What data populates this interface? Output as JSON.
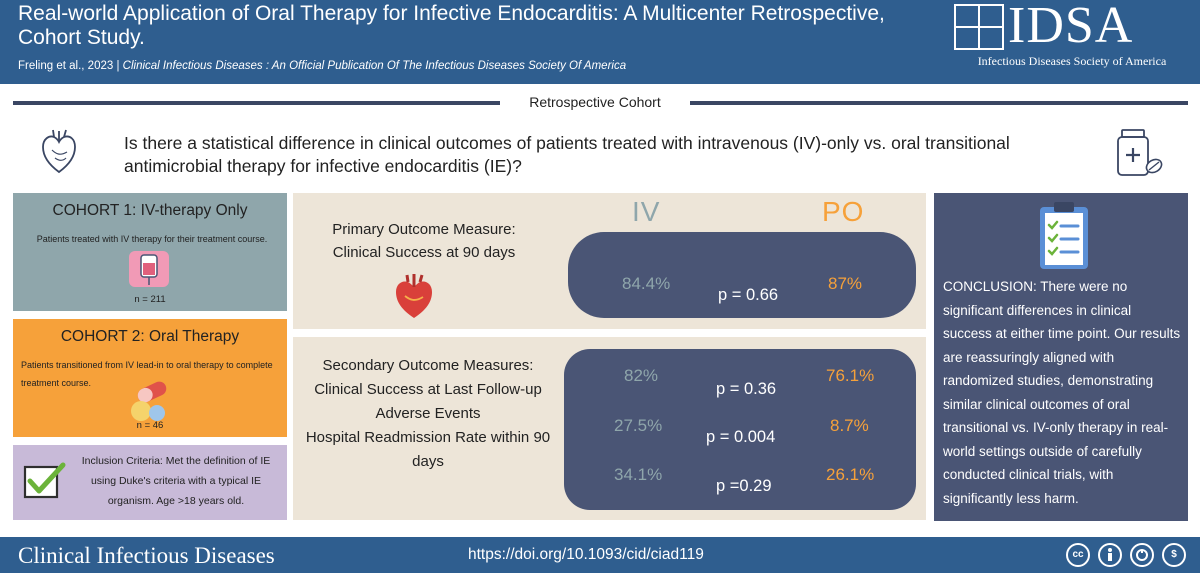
{
  "header": {
    "title": "Real-world Application of Oral Therapy for Infective Endocarditis: A Multicenter Retrospective, Cohort Study.",
    "authors": "Freling et al., 2023",
    "separator": "|",
    "journal": "Clinical Infectious Diseases : An Official Publication Of The Infectious Diseases Society Of America",
    "logo_text": "IDSA",
    "logo_subtitle": "Infectious Diseases Society of America"
  },
  "study_type": "Retrospective Cohort",
  "question": "Is there a statistical difference in clinical outcomes of patients treated with intravenous (IV)-only vs. oral transitional antimicrobial therapy for infective endocarditis (IE)?",
  "cohorts": [
    {
      "title": "COHORT 1: IV-therapy Only",
      "description": "Patients treated with IV therapy for their treatment course.",
      "n": "n = 211"
    },
    {
      "title": "COHORT 2: Oral Therapy",
      "description": "Patients transitioned from IV lead-in to oral therapy to complete treatment course.",
      "n": "n = 46"
    }
  ],
  "inclusion": "Inclusion Criteria:  Met the definition of IE using Duke's criteria with a typical IE organism. Age >18 years old.",
  "columns": {
    "iv": "IV",
    "po": "PO"
  },
  "primary": {
    "label_line1": "Primary Outcome Measure:",
    "label_line2": "Clinical Success at 90 days",
    "iv": "84.4%",
    "p": "p = 0.66",
    "po": "87%"
  },
  "secondary": {
    "heading": "Secondary Outcome Measures:",
    "rows": [
      {
        "label": "Clinical Success at Last Follow-up",
        "iv": "82%",
        "p": "p = 0.36",
        "po": "76.1%"
      },
      {
        "label": "Adverse Events",
        "iv": "27.5%",
        "p": "p = 0.004",
        "po": "8.7%"
      },
      {
        "label": "Hospital Readmission Rate within 90 days",
        "iv": "34.1%",
        "p": "p =0.29",
        "po": "26.1%"
      }
    ]
  },
  "conclusion": "CONCLUSION:  There were no significant differences in clinical success at either time point. Our results are reassuringly aligned with randomized studies, demonstrating similar clinical outcomes of oral transitional vs. IV-only therapy in real-world settings outside of carefully conducted clinical trials, with significantly less harm.",
  "footer": {
    "journal": "Clinical Infectious Diseases",
    "doi": "https://doi.org/10.1093/cid/ciad119",
    "license_icons": [
      "cc-icon",
      "by-icon",
      "nd-icon",
      "nc-icon"
    ]
  },
  "colors": {
    "header_blue": "#2f5e8f",
    "cohort1": "#8fa6ab",
    "cohort2": "#f6a13a",
    "inclusion": "#c8bad8",
    "panel": "#ede5d8",
    "navy": "#4a5575"
  }
}
